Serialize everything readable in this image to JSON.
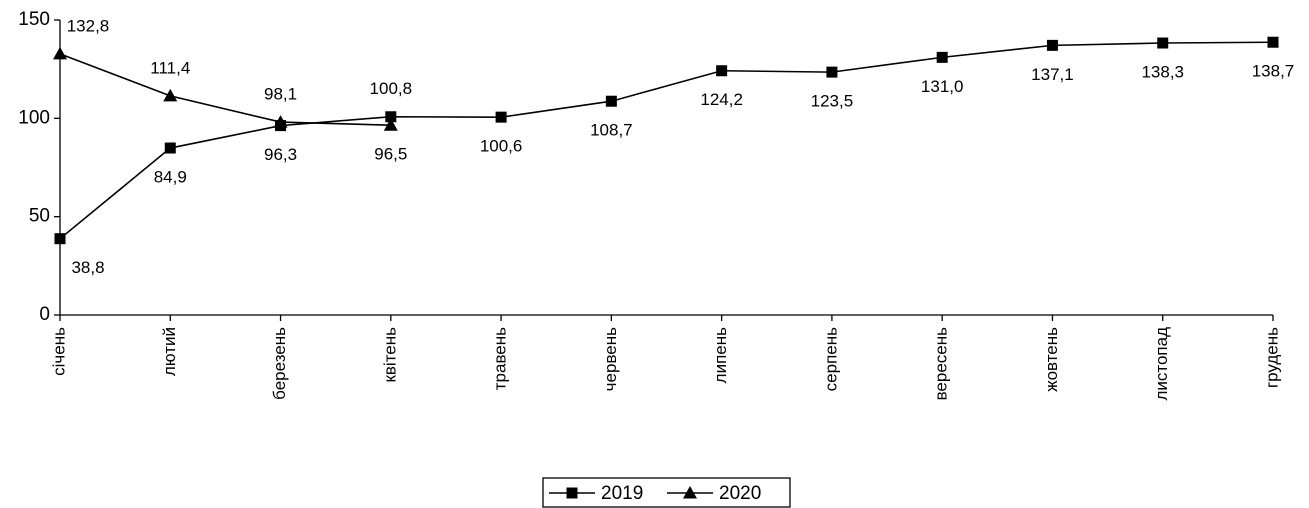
{
  "chart_data": {
    "type": "line",
    "categories": [
      "січень",
      "лютий",
      "березень",
      "квітень",
      "травень",
      "червень",
      "липень",
      "серпень",
      "вересень",
      "жовтень",
      "листопад",
      "грудень"
    ],
    "series": [
      {
        "name": "2019",
        "color": "#000000",
        "marker": "square",
        "values": [
          38.8,
          84.9,
          96.3,
          100.8,
          100.6,
          108.7,
          124.2,
          123.5,
          131.0,
          137.1,
          138.3,
          138.7
        ],
        "value_labels": [
          "38,8",
          "84,9",
          "96,3",
          "100,8",
          "100,6",
          "108,7",
          "124,2",
          "123,5",
          "131,0",
          "137,1",
          "138,3",
          "138,7"
        ]
      },
      {
        "name": "2020",
        "color": "#000000",
        "marker": "triangle",
        "values": [
          132.8,
          111.4,
          98.1,
          96.5,
          null,
          null,
          null,
          null,
          null,
          null,
          null,
          null
        ],
        "value_labels": [
          "132,8",
          "111,4",
          "98,1",
          "96,5",
          null,
          null,
          null,
          null,
          null,
          null,
          null,
          null
        ]
      }
    ],
    "ylim": [
      0,
      150
    ],
    "yticks": [
      0,
      50,
      100,
      150
    ],
    "legend": "bottom"
  }
}
